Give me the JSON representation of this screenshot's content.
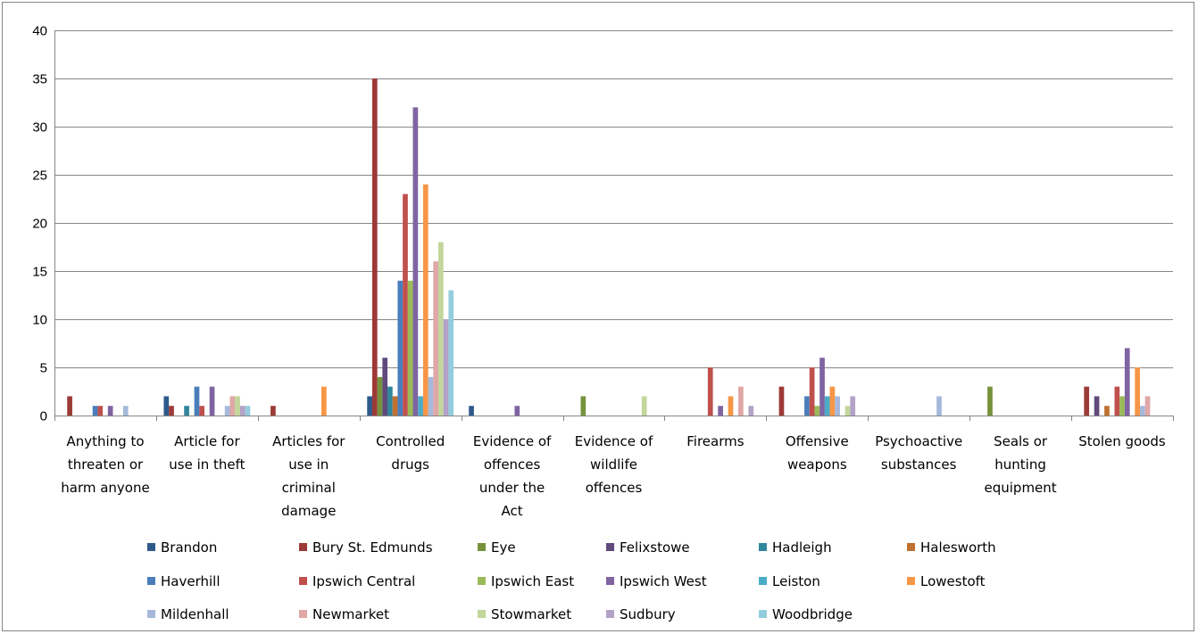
{
  "chart_data": {
    "type": "bar",
    "title": "",
    "xlabel": "",
    "ylabel": "",
    "ylim": [
      0,
      40
    ],
    "yticks": [
      0,
      5,
      10,
      15,
      20,
      25,
      30,
      35,
      40
    ],
    "grid": true,
    "legend_position": "bottom",
    "categories": [
      "Anything to threaten or harm anyone",
      "Article for use in theft",
      "Articles for use in criminal damage",
      "Controlled drugs",
      "Evidence of offences under the Act",
      "Evidence of wildlife offences",
      "Firearms",
      "Offensive weapons",
      "Psychoactive substances",
      "Seals or hunting equipment",
      "Stolen goods"
    ],
    "category_lines": [
      [
        "Anything to",
        "threaten or",
        "harm anyone"
      ],
      [
        "Article for",
        "use in theft"
      ],
      [
        "Articles for",
        "use in",
        "criminal",
        "damage"
      ],
      [
        "Controlled",
        "drugs"
      ],
      [
        "Evidence of",
        "offences",
        "under the",
        "Act"
      ],
      [
        "Evidence of",
        "wildlife",
        "offences"
      ],
      [
        "Firearms"
      ],
      [
        "Offensive",
        "weapons"
      ],
      [
        "Psychoactive",
        "substances"
      ],
      [
        "Seals or",
        "hunting",
        "equipment"
      ],
      [
        "Stolen goods"
      ]
    ],
    "series": [
      {
        "name": "Brandon",
        "color": "#2E5A8B",
        "values": [
          0,
          2,
          0,
          2,
          1,
          0,
          0,
          0,
          0,
          0,
          0
        ]
      },
      {
        "name": "Bury St. Edmunds",
        "color": "#9C3A37",
        "values": [
          2,
          1,
          1,
          35,
          0,
          0,
          0,
          3,
          0,
          0,
          3
        ]
      },
      {
        "name": "Eye",
        "color": "#76923C",
        "values": [
          0,
          0,
          0,
          4,
          0,
          2,
          0,
          0,
          0,
          3,
          0
        ]
      },
      {
        "name": "Felixstowe",
        "color": "#5F4A7B",
        "values": [
          0,
          0,
          0,
          6,
          0,
          0,
          0,
          0,
          0,
          0,
          2
        ]
      },
      {
        "name": "Hadleigh",
        "color": "#31859C",
        "values": [
          0,
          1,
          0,
          3,
          0,
          0,
          0,
          0,
          0,
          0,
          0
        ]
      },
      {
        "name": "Halesworth",
        "color": "#C0712F",
        "values": [
          0,
          0,
          0,
          2,
          0,
          0,
          0,
          0,
          0,
          0,
          1
        ]
      },
      {
        "name": "Haverhill",
        "color": "#4A7EBB",
        "values": [
          1,
          3,
          0,
          14,
          0,
          0,
          0,
          2,
          0,
          0,
          0
        ]
      },
      {
        "name": "Ipswich Central",
        "color": "#C0504D",
        "values": [
          1,
          1,
          0,
          23,
          0,
          0,
          5,
          5,
          0,
          0,
          3
        ]
      },
      {
        "name": "Ipswich East",
        "color": "#9BBB59",
        "values": [
          0,
          0,
          0,
          14,
          0,
          0,
          0,
          1,
          0,
          0,
          2
        ]
      },
      {
        "name": "Ipswich West",
        "color": "#8064A2",
        "values": [
          1,
          3,
          0,
          32,
          1,
          0,
          1,
          6,
          0,
          0,
          7
        ]
      },
      {
        "name": "Leiston",
        "color": "#4BACC6",
        "values": [
          0,
          0,
          0,
          2,
          0,
          0,
          0,
          2,
          0,
          0,
          0
        ]
      },
      {
        "name": "Lowestoft",
        "color": "#F79646",
        "values": [
          0,
          0,
          3,
          24,
          0,
          0,
          2,
          3,
          0,
          0,
          5
        ]
      },
      {
        "name": "Mildenhall",
        "color": "#A6B9DC",
        "values": [
          1,
          1,
          0,
          4,
          0,
          0,
          0,
          2,
          2,
          0,
          1
        ]
      },
      {
        "name": "Newmarket",
        "color": "#DFA7A6",
        "values": [
          0,
          2,
          0,
          16,
          0,
          0,
          3,
          0,
          0,
          0,
          2
        ]
      },
      {
        "name": "Stowmarket",
        "color": "#C3D69B",
        "values": [
          0,
          2,
          0,
          18,
          0,
          2,
          0,
          1,
          0,
          0,
          0
        ]
      },
      {
        "name": "Sudbury",
        "color": "#B3A2C7",
        "values": [
          0,
          1,
          0,
          10,
          0,
          0,
          1,
          2,
          0,
          0,
          0
        ]
      },
      {
        "name": "Woodbridge",
        "color": "#93CDDD",
        "values": [
          0,
          1,
          0,
          13,
          0,
          0,
          0,
          0,
          0,
          0,
          0
        ]
      }
    ]
  }
}
